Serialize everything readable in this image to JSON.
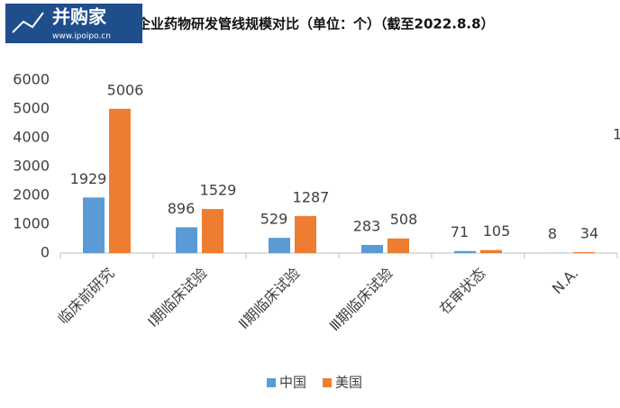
{
  "logo": {
    "name": "并购家",
    "url": "www.ipoipo.cn"
  },
  "chart_data": {
    "type": "bar",
    "title": "企业药物研发管线规模对比（单位：个）（截至2022.8.8）",
    "annotation": "1",
    "categories": [
      "临床前研究",
      "Ⅰ期临床试验",
      "Ⅱ期临床试验",
      "Ⅲ期临床试验",
      "在审状态",
      "N.A."
    ],
    "series": [
      {
        "name": "中国",
        "color": "#5b9bd5",
        "values": [
          1929,
          896,
          529,
          283,
          71,
          8
        ]
      },
      {
        "name": "美国",
        "color": "#ed7d31",
        "values": [
          5006,
          1529,
          1287,
          508,
          105,
          34
        ]
      }
    ],
    "ylim": [
      0,
      6000
    ],
    "yticks": [
      0,
      1000,
      2000,
      3000,
      4000,
      5000,
      6000
    ],
    "grid": false,
    "legend": "bottom"
  }
}
